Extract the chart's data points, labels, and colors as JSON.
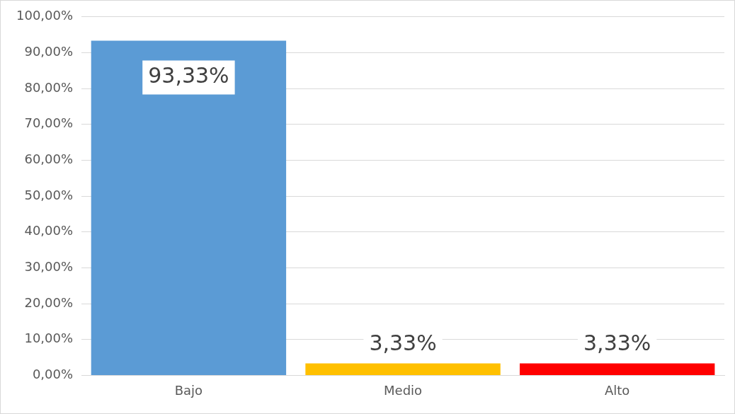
{
  "chart_data": {
    "type": "bar",
    "categories": [
      "Bajo",
      "Medio",
      "Alto"
    ],
    "values": [
      93.33,
      3.33,
      3.33
    ],
    "colors": [
      "#5b9bd5",
      "#ffc000",
      "#ff0000"
    ],
    "value_labels": [
      "93,33%",
      "3,33%",
      "3,33%"
    ],
    "ylim": [
      0,
      100
    ],
    "yticks": [
      {
        "value": 0,
        "label": "0,00%"
      },
      {
        "value": 10,
        "label": "10,00%"
      },
      {
        "value": 20,
        "label": "20,00%"
      },
      {
        "value": 30,
        "label": "30,00%"
      },
      {
        "value": 40,
        "label": "40,00%"
      },
      {
        "value": 50,
        "label": "50,00%"
      },
      {
        "value": 60,
        "label": "60,00%"
      },
      {
        "value": 70,
        "label": "70,00%"
      },
      {
        "value": 80,
        "label": "80,00%"
      },
      {
        "value": 90,
        "label": "90,00%"
      },
      {
        "value": 100,
        "label": "100,00%"
      }
    ],
    "grid": "y",
    "legend": false
  }
}
